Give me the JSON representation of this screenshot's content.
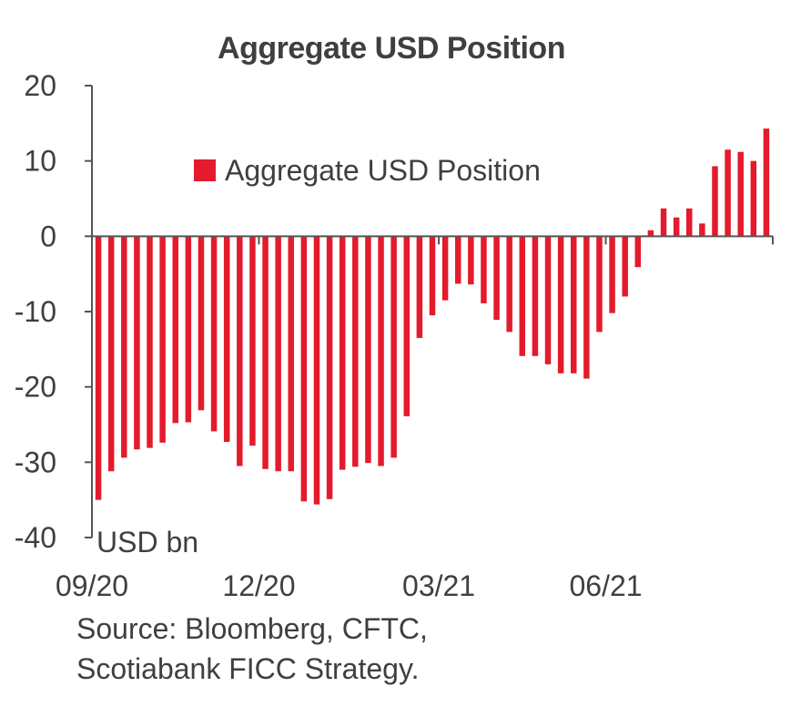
{
  "chart_data": {
    "type": "bar",
    "title": "Aggregate USD Position",
    "ylabel": "USD bn",
    "ylim": [
      -40,
      20
    ],
    "y_ticks": [
      "20",
      "10",
      "0",
      "-10",
      "-20",
      "-30",
      "-40"
    ],
    "x_tick_labels": [
      {
        "label": "09/20",
        "index": 0
      },
      {
        "label": "12/20",
        "index": 13
      },
      {
        "label": "03/21",
        "index": 27
      },
      {
        "label": "06/21",
        "index": 40
      }
    ],
    "legend": {
      "position": "top-center",
      "entries": [
        "Aggregate USD Position"
      ]
    },
    "series": [
      {
        "name": "Aggregate USD Position",
        "color": "#e31b2c",
        "values": [
          -35,
          -31.2,
          -29.4,
          -28.3,
          -28.1,
          -27.4,
          -24.8,
          -24.7,
          -23.1,
          -25.9,
          -27.3,
          -30.5,
          -27.8,
          -30.9,
          -31.2,
          -31.2,
          -35.2,
          -35.6,
          -34.9,
          -31,
          -30.6,
          -30.1,
          -30.5,
          -29.4,
          -23.9,
          -13.5,
          -10.5,
          -8.5,
          -6.3,
          -6.4,
          -8.9,
          -11.1,
          -12.7,
          -15.9,
          -15.9,
          -17,
          -18.2,
          -18.2,
          -18.9,
          -12.7,
          -10.2,
          -8,
          -4.1,
          0.8,
          3.7,
          2.5,
          3.7,
          1.7,
          9.3,
          11.5,
          11.2,
          10,
          14.3
        ]
      }
    ],
    "grid": false
  },
  "source_lines": [
    "Source: Bloomberg, CFTC,",
    "Scotiabank FICC Strategy."
  ]
}
